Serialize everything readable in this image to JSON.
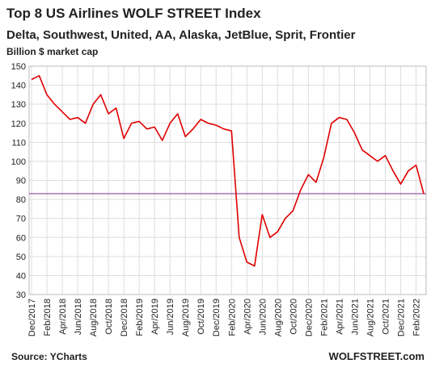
{
  "chart_data": {
    "type": "line",
    "title": "Top 8 US Airlines WOLF STREET Index",
    "subtitle": "Delta, Southwest, United, AA, Alaska, JetBlue, Sprit, Frontier",
    "y_label": "Billion $ market cap",
    "source": "Source: YCharts",
    "watermark": "WOLFSTREET.com",
    "categories": [
      "Dec/2017",
      null,
      "Feb/2018",
      null,
      "Apr/2018",
      null,
      "Jun/2018",
      null,
      "Aug/2018",
      null,
      "Oct/2018",
      null,
      "Dec/2018",
      null,
      "Feb/2019",
      null,
      "Apr/2019",
      null,
      "Jun/2019",
      null,
      "Aug/2019",
      null,
      "Oct/2019",
      null,
      "Dec/2019",
      null,
      "Feb/2020",
      null,
      "Apr/2020",
      null,
      "Jun/2020",
      null,
      "Aug/2020",
      null,
      "Oct/2020",
      null,
      "Dec/2020",
      null,
      "Feb/2021",
      null,
      "Apr/2021",
      null,
      "Jun/2021",
      null,
      "Aug/2021",
      null,
      "Oct/2021",
      null,
      "Dec/2021",
      null,
      "Feb/2022",
      null
    ],
    "series": [
      {
        "name": "Index",
        "color": "#e00000",
        "values": [
          143,
          145,
          135,
          130,
          126,
          122,
          123,
          120,
          130,
          135,
          125,
          128,
          112,
          120,
          121,
          117,
          118,
          111,
          120,
          125,
          113,
          117,
          122,
          120,
          119,
          117,
          116,
          60,
          47,
          45,
          72,
          60,
          63,
          70,
          74,
          85,
          93,
          89,
          102,
          120,
          123,
          122,
          115,
          106,
          103,
          100,
          103,
          95,
          88,
          95,
          98,
          83
        ]
      }
    ],
    "reference_line": {
      "value": 83,
      "color": "#7b2d8e"
    },
    "ylim": [
      30,
      150
    ],
    "yticks": [
      30,
      40,
      50,
      60,
      70,
      80,
      90,
      100,
      110,
      120,
      130,
      140,
      150
    ],
    "grid": true
  }
}
